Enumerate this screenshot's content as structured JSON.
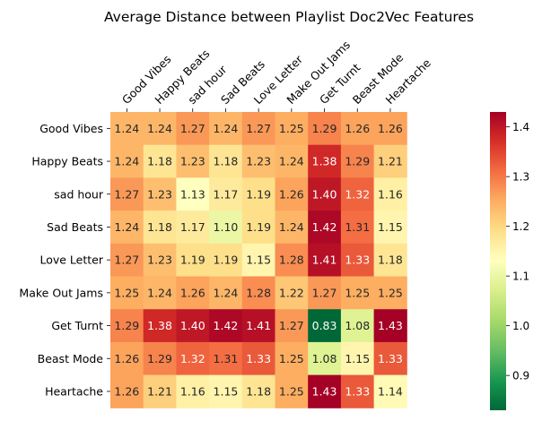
{
  "chart_data": {
    "type": "heatmap",
    "title": "Average Distance between Playlist Doc2Vec Features",
    "x_labels": [
      "Good Vibes",
      "Happy Beats",
      "sad hour",
      "Sad Beats",
      "Love Letter",
      "Make Out Jams",
      "Get Turnt",
      "Beast Mode",
      "Heartache"
    ],
    "y_labels": [
      "Good Vibes",
      "Happy Beats",
      "sad hour",
      "Sad Beats",
      "Love Letter",
      "Make Out Jams",
      "Get Turnt",
      "Beast Mode",
      "Heartache"
    ],
    "values": [
      [
        1.24,
        1.24,
        1.27,
        1.24,
        1.27,
        1.25,
        1.29,
        1.26,
        1.26
      ],
      [
        1.24,
        1.18,
        1.23,
        1.18,
        1.23,
        1.24,
        1.38,
        1.29,
        1.21
      ],
      [
        1.27,
        1.23,
        1.13,
        1.17,
        1.19,
        1.26,
        1.4,
        1.32,
        1.16
      ],
      [
        1.24,
        1.18,
        1.17,
        1.1,
        1.19,
        1.24,
        1.42,
        1.31,
        1.15
      ],
      [
        1.27,
        1.23,
        1.19,
        1.19,
        1.15,
        1.28,
        1.41,
        1.33,
        1.18
      ],
      [
        1.25,
        1.24,
        1.26,
        1.24,
        1.28,
        1.22,
        1.27,
        1.25,
        1.25
      ],
      [
        1.29,
        1.38,
        1.4,
        1.42,
        1.41,
        1.27,
        0.83,
        1.08,
        1.43
      ],
      [
        1.26,
        1.29,
        1.32,
        1.31,
        1.33,
        1.25,
        1.08,
        1.15,
        1.33
      ],
      [
        1.26,
        1.21,
        1.16,
        1.15,
        1.18,
        1.25,
        1.43,
        1.33,
        1.14
      ]
    ],
    "value_format": "0.00",
    "colormap": "RdYlGn_r",
    "color_range": [
      0.83,
      1.43
    ],
    "colorbar_ticks": [
      0.9,
      1.0,
      1.1,
      1.2,
      1.3,
      1.4
    ],
    "colorbar_position": "right",
    "x_tick_position": "top",
    "grid": false
  }
}
